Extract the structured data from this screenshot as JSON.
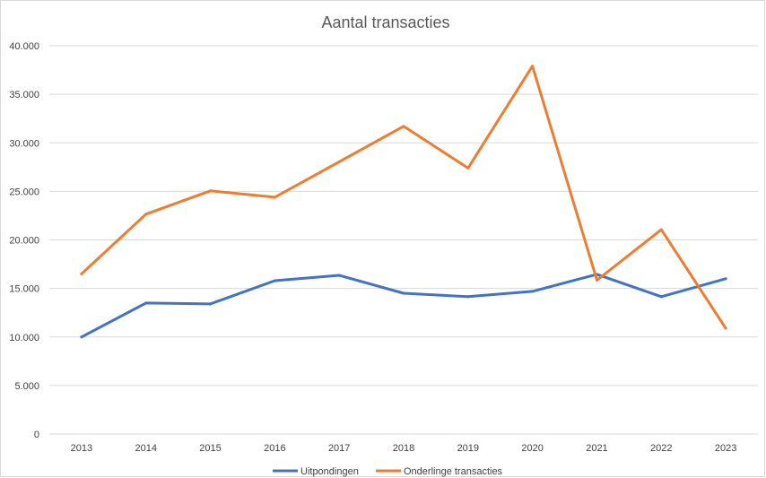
{
  "chart_data": {
    "type": "line",
    "title": "Aantal transacties",
    "xlabel": "",
    "ylabel": "",
    "categories": [
      "2013",
      "2014",
      "2015",
      "2016",
      "2017",
      "2018",
      "2019",
      "2020",
      "2021",
      "2022",
      "2023"
    ],
    "series": [
      {
        "name": "Uitpondingen",
        "color": "#4472c4",
        "values": [
          10000,
          13500,
          13400,
          15800,
          16350,
          14500,
          14150,
          14700,
          16450,
          14150,
          16000
        ]
      },
      {
        "name": "Onderlinge transacties",
        "color": "#ed7d31",
        "values": [
          16500,
          22650,
          25050,
          24400,
          28050,
          31700,
          27400,
          37900,
          15850,
          21050,
          10900
        ]
      }
    ],
    "ylim": [
      0,
      40000
    ],
    "yticks": [
      0,
      5000,
      10000,
      15000,
      20000,
      25000,
      30000,
      35000,
      40000
    ],
    "ytick_labels": [
      "0",
      "5.000",
      "10.000",
      "15.000",
      "20.000",
      "25.000",
      "30.000",
      "35.000",
      "40.000"
    ],
    "grid": true,
    "legend_position": "bottom"
  }
}
